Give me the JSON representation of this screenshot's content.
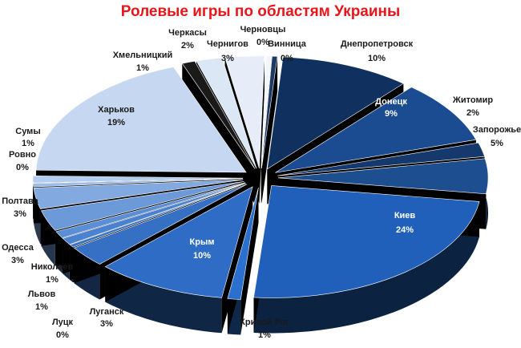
{
  "chart_data": {
    "type": "pie",
    "title": "Ролевые игры по областям Украины",
    "title_color": "#e8161b",
    "slices": [
      {
        "name": "Винница",
        "value": "0%",
        "v": 0.4,
        "color": "#1f3864"
      },
      {
        "name": "Днепропетровск",
        "value": "10%",
        "v": 10,
        "color": "#10305f"
      },
      {
        "name": "Донецк",
        "value": "9%",
        "v": 9,
        "color": "#1b4c91"
      },
      {
        "name": "Житомир",
        "value": "2%",
        "v": 2,
        "color": "#15396d"
      },
      {
        "name": "Запорожье",
        "value": "5%",
        "v": 5,
        "color": "#1d4e8f"
      },
      {
        "name": "Киев",
        "value": "24%",
        "v": 24,
        "color": "#2060ba"
      },
      {
        "name": "Кривой Рог",
        "value": "1%",
        "v": 1,
        "color": "#2b6fcf"
      },
      {
        "name": "Крым",
        "value": "10%",
        "v": 10,
        "color": "#2e6cc5"
      },
      {
        "name": "Луганск",
        "value": "3%",
        "v": 3,
        "color": "#3570c4"
      },
      {
        "name": "Луцк",
        "value": "0%",
        "v": 0.4,
        "color": "#3a74c6"
      },
      {
        "name": "Львов",
        "value": "1%",
        "v": 1,
        "color": "#4a82cf"
      },
      {
        "name": "Николаев",
        "value": "1%",
        "v": 1,
        "color": "#5a8ed5"
      },
      {
        "name": "Одесса",
        "value": "3%",
        "v": 3,
        "color": "#6c9ad9"
      },
      {
        "name": "Полтава",
        "value": "3%",
        "v": 3,
        "color": "#82aae0"
      },
      {
        "name": "Ровно",
        "value": "0%",
        "v": 0.5,
        "color": "#9cbde7"
      },
      {
        "name": "Сумы",
        "value": "1%",
        "v": 1,
        "color": "#b2cdee"
      },
      {
        "name": "Харьков",
        "value": "19%",
        "v": 19,
        "color": "#c6d8f1"
      },
      {
        "name": "Хмельницкий",
        "value": "1%",
        "v": 1,
        "color": "#1a1a1a"
      },
      {
        "name": "Черкасы",
        "value": "2%",
        "v": 2,
        "color": "#dce7f6"
      },
      {
        "name": "Чернигов",
        "value": "3%",
        "v": 3,
        "color": "#e6edf8"
      },
      {
        "name": "Черновцы",
        "value": "0%",
        "v": 0.4,
        "color": "#f2f6fc"
      }
    ]
  }
}
